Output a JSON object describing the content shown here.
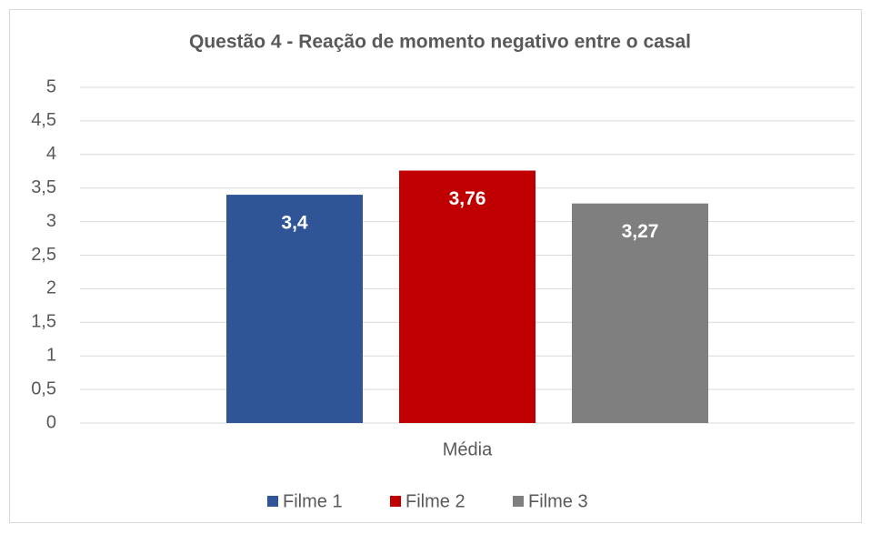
{
  "chart_data": {
    "type": "bar",
    "title": "Questão 4 - Reação de momento negativo entre o casal",
    "categories": [
      "Média"
    ],
    "series": [
      {
        "name": "Filme 1",
        "color": "#2f5597",
        "values": [
          3.4
        ],
        "value_labels": [
          "3,4"
        ]
      },
      {
        "name": "Filme 2",
        "color": "#c00000",
        "values": [
          3.76
        ],
        "value_labels": [
          "3,76"
        ]
      },
      {
        "name": "Filme 3",
        "color": "#7f7f7f",
        "values": [
          3.27
        ],
        "value_labels": [
          "3,27"
        ]
      }
    ],
    "ylim": [
      0,
      5
    ],
    "yticks": [
      0,
      {
        "value": 0.5,
        "label": "0,5"
      },
      1,
      {
        "value": 1.5,
        "label": "1,5"
      },
      2,
      {
        "value": 2.5,
        "label": "2,5"
      },
      3,
      {
        "value": 3.5,
        "label": "3,5"
      },
      4,
      {
        "value": 4.5,
        "label": "4,5"
      },
      5
    ],
    "grid": true,
    "legend": "bottom"
  }
}
